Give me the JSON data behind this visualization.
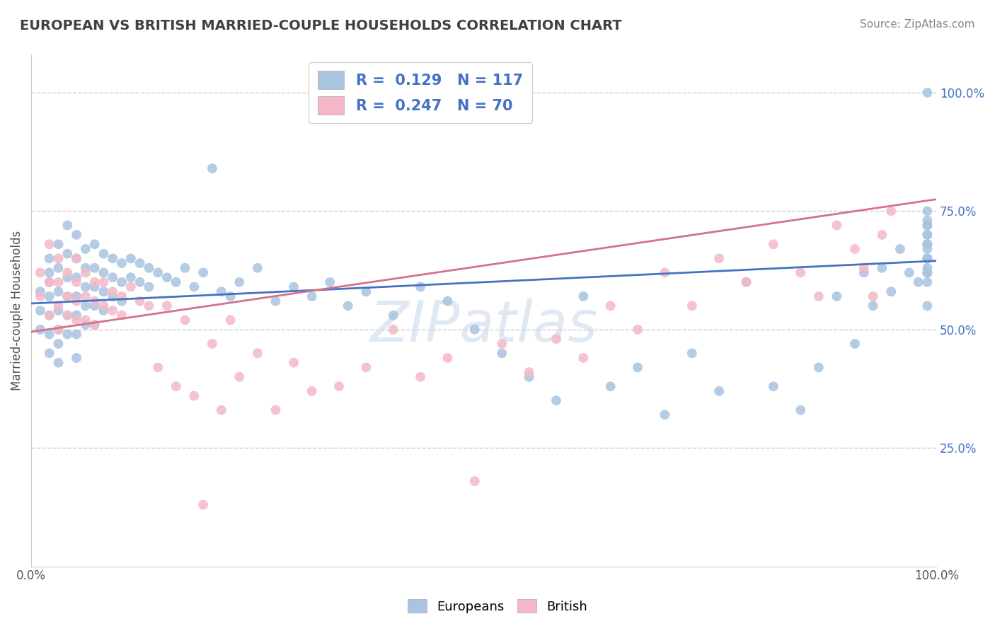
{
  "title": "EUROPEAN VS BRITISH MARRIED-COUPLE HOUSEHOLDS CORRELATION CHART",
  "source": "Source: ZipAtlas.com",
  "ylabel": "Married-couple Households",
  "xlim": [
    0,
    1
  ],
  "ylim": [
    0,
    1.08
  ],
  "right_yticks": [
    0.25,
    0.5,
    0.75,
    1.0
  ],
  "right_yticklabels": [
    "25.0%",
    "50.0%",
    "75.0%",
    "100.0%"
  ],
  "grid_yticks": [
    0.25,
    0.5,
    0.75,
    1.0
  ],
  "legend_eu_R": "0.129",
  "legend_eu_N": "117",
  "legend_br_R": "0.247",
  "legend_br_N": "70",
  "watermark": "ZIPatlas",
  "blue_scatter_color": "#a8c4e0",
  "pink_scatter_color": "#f4b8c8",
  "blue_line_color": "#4472c4",
  "pink_line_color": "#d4728a",
  "blue_tick_color": "#4472c4",
  "background_color": "#ffffff",
  "grid_color": "#cccccc",
  "title_color": "#404040",
  "source_color": "#888888",
  "eu_trend_x0": 0.0,
  "eu_trend_x1": 1.0,
  "eu_trend_y0": 0.555,
  "eu_trend_y1": 0.645,
  "br_trend_x0": 0.0,
  "br_trend_x1": 1.0,
  "br_trend_y0": 0.495,
  "br_trend_y1": 0.775,
  "europeans_x": [
    0.01,
    0.01,
    0.01,
    0.02,
    0.02,
    0.02,
    0.02,
    0.02,
    0.02,
    0.02,
    0.03,
    0.03,
    0.03,
    0.03,
    0.03,
    0.03,
    0.03,
    0.04,
    0.04,
    0.04,
    0.04,
    0.04,
    0.04,
    0.05,
    0.05,
    0.05,
    0.05,
    0.05,
    0.05,
    0.05,
    0.06,
    0.06,
    0.06,
    0.06,
    0.06,
    0.07,
    0.07,
    0.07,
    0.07,
    0.07,
    0.08,
    0.08,
    0.08,
    0.08,
    0.09,
    0.09,
    0.09,
    0.1,
    0.1,
    0.1,
    0.11,
    0.11,
    0.12,
    0.12,
    0.13,
    0.13,
    0.14,
    0.15,
    0.16,
    0.17,
    0.18,
    0.19,
    0.2,
    0.21,
    0.22,
    0.23,
    0.25,
    0.27,
    0.29,
    0.31,
    0.33,
    0.35,
    0.37,
    0.4,
    0.43,
    0.46,
    0.49,
    0.52,
    0.55,
    0.58,
    0.61,
    0.64,
    0.67,
    0.7,
    0.73,
    0.76,
    0.79,
    0.82,
    0.85,
    0.87,
    0.89,
    0.91,
    0.92,
    0.93,
    0.94,
    0.95,
    0.96,
    0.97,
    0.98,
    0.99,
    0.99,
    0.99,
    0.99,
    0.99,
    0.99,
    0.99,
    0.99,
    0.99,
    0.99,
    0.99,
    0.99,
    0.99,
    0.99,
    0.99,
    0.99,
    0.99,
    0.99
  ],
  "europeans_y": [
    0.58,
    0.54,
    0.5,
    0.65,
    0.6,
    0.57,
    0.53,
    0.49,
    0.45,
    0.62,
    0.68,
    0.63,
    0.58,
    0.54,
    0.5,
    0.47,
    0.43,
    0.72,
    0.66,
    0.61,
    0.57,
    0.53,
    0.49,
    0.7,
    0.65,
    0.61,
    0.57,
    0.53,
    0.49,
    0.44,
    0.67,
    0.63,
    0.59,
    0.55,
    0.51,
    0.68,
    0.63,
    0.59,
    0.55,
    0.51,
    0.66,
    0.62,
    0.58,
    0.54,
    0.65,
    0.61,
    0.57,
    0.64,
    0.6,
    0.56,
    0.65,
    0.61,
    0.64,
    0.6,
    0.63,
    0.59,
    0.62,
    0.61,
    0.6,
    0.63,
    0.59,
    0.62,
    0.84,
    0.58,
    0.57,
    0.6,
    0.63,
    0.56,
    0.59,
    0.57,
    0.6,
    0.55,
    0.58,
    0.53,
    0.59,
    0.56,
    0.5,
    0.45,
    0.4,
    0.35,
    0.57,
    0.38,
    0.42,
    0.32,
    0.45,
    0.37,
    0.6,
    0.38,
    0.33,
    0.42,
    0.57,
    0.47,
    0.62,
    0.55,
    0.63,
    0.58,
    0.67,
    0.62,
    0.6,
    0.68,
    0.65,
    0.7,
    0.63,
    0.72,
    0.67,
    0.75,
    0.62,
    0.7,
    0.65,
    0.72,
    0.6,
    0.68,
    0.55,
    0.73,
    0.62,
    0.65,
    1.0
  ],
  "british_x": [
    0.01,
    0.01,
    0.02,
    0.02,
    0.02,
    0.03,
    0.03,
    0.03,
    0.03,
    0.04,
    0.04,
    0.04,
    0.05,
    0.05,
    0.05,
    0.05,
    0.06,
    0.06,
    0.06,
    0.07,
    0.07,
    0.07,
    0.08,
    0.08,
    0.09,
    0.09,
    0.1,
    0.1,
    0.11,
    0.12,
    0.13,
    0.14,
    0.15,
    0.16,
    0.17,
    0.18,
    0.19,
    0.2,
    0.21,
    0.22,
    0.23,
    0.25,
    0.27,
    0.29,
    0.31,
    0.34,
    0.37,
    0.4,
    0.43,
    0.46,
    0.49,
    0.52,
    0.55,
    0.58,
    0.61,
    0.64,
    0.67,
    0.7,
    0.73,
    0.76,
    0.79,
    0.82,
    0.85,
    0.87,
    0.89,
    0.91,
    0.92,
    0.93,
    0.94,
    0.95
  ],
  "british_y": [
    0.62,
    0.57,
    0.68,
    0.6,
    0.53,
    0.65,
    0.6,
    0.55,
    0.5,
    0.62,
    0.57,
    0.53,
    0.65,
    0.6,
    0.56,
    0.52,
    0.62,
    0.57,
    0.52,
    0.6,
    0.56,
    0.51,
    0.6,
    0.55,
    0.58,
    0.54,
    0.57,
    0.53,
    0.59,
    0.56,
    0.55,
    0.42,
    0.55,
    0.38,
    0.52,
    0.36,
    0.13,
    0.47,
    0.33,
    0.52,
    0.4,
    0.45,
    0.33,
    0.43,
    0.37,
    0.38,
    0.42,
    0.5,
    0.4,
    0.44,
    0.18,
    0.47,
    0.41,
    0.48,
    0.44,
    0.55,
    0.5,
    0.62,
    0.55,
    0.65,
    0.6,
    0.68,
    0.62,
    0.57,
    0.72,
    0.67,
    0.63,
    0.57,
    0.7,
    0.75
  ]
}
